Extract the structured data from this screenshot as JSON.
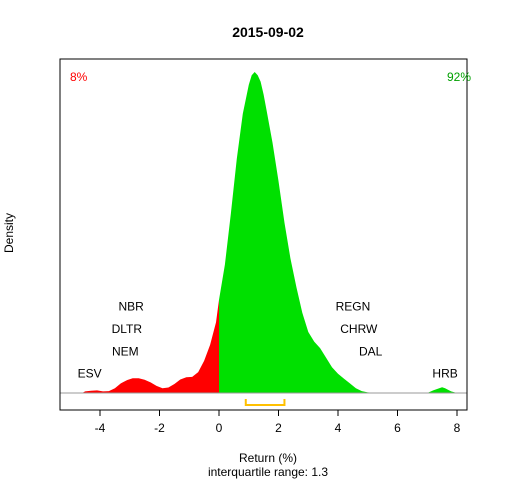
{
  "chart_data": {
    "type": "area",
    "title": "2015-09-02",
    "xlabel": "Return (%)",
    "ylabel": "Density",
    "subtitle": "interquartile range: 1.3",
    "xlim": [
      -5.3,
      8.6
    ],
    "ylim": [
      0,
      1
    ],
    "x_ticks": [
      -4,
      -2,
      0,
      2,
      4,
      6,
      8
    ],
    "x_tick_labels": [
      "-4",
      "-2",
      "0",
      "2",
      "4",
      "6",
      "8"
    ],
    "grid": false,
    "density_curve": {
      "x": [
        -4.6,
        -4.5,
        -4.3,
        -4.1,
        -3.9,
        -3.7,
        -3.5,
        -3.3,
        -3.1,
        -2.9,
        -2.7,
        -2.5,
        -2.3,
        -2.1,
        -1.9,
        -1.7,
        -1.5,
        -1.3,
        -1.1,
        -0.9,
        -0.7,
        -0.5,
        -0.3,
        -0.1,
        0,
        0.2,
        0.4,
        0.6,
        0.8,
        1.0,
        1.1,
        1.2,
        1.3,
        1.4,
        1.5,
        1.6,
        1.8,
        2.0,
        2.2,
        2.4,
        2.6,
        2.8,
        3.0,
        3.2,
        3.4,
        3.6,
        3.8,
        4.0,
        4.2,
        4.4,
        4.6,
        4.8,
        5.0,
        5.2,
        5.4,
        5.6,
        6.0,
        7.0,
        7.2,
        7.4,
        7.5,
        7.6,
        7.8,
        8.0
      ],
      "y": [
        0,
        0.005,
        0.007,
        0.008,
        0.005,
        0.006,
        0.015,
        0.03,
        0.04,
        0.046,
        0.046,
        0.041,
        0.033,
        0.022,
        0.015,
        0.017,
        0.028,
        0.042,
        0.049,
        0.05,
        0.065,
        0.1,
        0.15,
        0.22,
        0.29,
        0.4,
        0.56,
        0.73,
        0.87,
        0.96,
        0.99,
        1.0,
        0.99,
        0.97,
        0.93,
        0.88,
        0.78,
        0.66,
        0.53,
        0.42,
        0.33,
        0.25,
        0.19,
        0.16,
        0.14,
        0.11,
        0.08,
        0.06,
        0.045,
        0.03,
        0.015,
        0.006,
        0.002,
        0.001,
        0.0,
        0.0,
        0.0,
        0.0,
        0.008,
        0.015,
        0.018,
        0.015,
        0.005,
        0.0
      ]
    },
    "negative_color": "#ff0000",
    "positive_color": "#00e000",
    "iqr_color": "#ffc000",
    "iqr_range": [
      0.9,
      2.2
    ],
    "negative_pct": "8%",
    "positive_pct": "92%",
    "annotations": [
      {
        "text": "ESV",
        "x": -4.35,
        "y": 0.06
      },
      {
        "text": "NEM",
        "x": -3.15,
        "y": 0.13
      },
      {
        "text": "DLTR",
        "x": -3.1,
        "y": 0.2
      },
      {
        "text": "NBR",
        "x": -2.95,
        "y": 0.27
      },
      {
        "text": "REGN",
        "x": 4.5,
        "y": 0.27
      },
      {
        "text": "CHRW",
        "x": 4.7,
        "y": 0.2
      },
      {
        "text": "DAL",
        "x": 5.1,
        "y": 0.13
      },
      {
        "text": "HRB",
        "x": 7.6,
        "y": 0.06
      }
    ]
  }
}
